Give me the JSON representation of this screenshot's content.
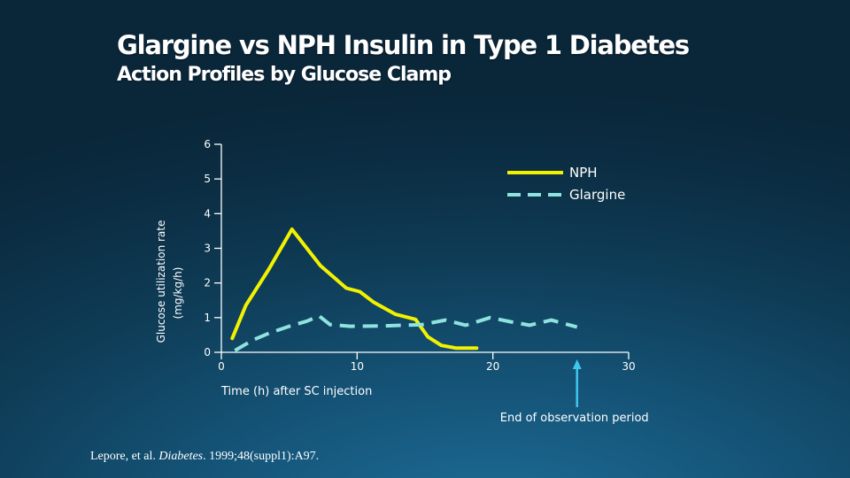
{
  "slide": {
    "title": "Glargine vs NPH Insulin in Type 1 Diabetes",
    "subtitle": "Action Profiles by Glucose Clamp",
    "citation_prefix": "Lepore, et al. ",
    "citation_journal": "Diabetes",
    "citation_suffix": ". 1999;48(suppl1):A97."
  },
  "chart_data": {
    "type": "line",
    "title": "",
    "xlabel": "Time (h) after SC injection",
    "ylabel": "Glucose utilization rate (mg/kg/h)",
    "xlim": [
      0,
      30
    ],
    "ylim": [
      0,
      6
    ],
    "x_ticks": [
      0,
      10,
      20,
      30
    ],
    "y_ticks": [
      0,
      1,
      2,
      3,
      4,
      5,
      6
    ],
    "legend_position": "top-right",
    "series": [
      {
        "name": "NPH",
        "color": "#f2f200",
        "style": "solid",
        "points": [
          [
            0.8,
            0.4
          ],
          [
            1.8,
            1.35
          ],
          [
            3.5,
            2.4
          ],
          [
            5.2,
            3.55
          ],
          [
            7.3,
            2.5
          ],
          [
            9.2,
            1.85
          ],
          [
            10.2,
            1.75
          ],
          [
            11.2,
            1.45
          ],
          [
            12.8,
            1.1
          ],
          [
            14.3,
            0.95
          ],
          [
            15.2,
            0.45
          ],
          [
            16.2,
            0.2
          ],
          [
            17.3,
            0.12
          ],
          [
            18.8,
            0.12
          ]
        ]
      },
      {
        "name": "Glargine",
        "color": "#8fe3df",
        "style": "dashed",
        "points": [
          [
            1.0,
            0.05
          ],
          [
            2.3,
            0.35
          ],
          [
            3.5,
            0.55
          ],
          [
            5.0,
            0.75
          ],
          [
            6.3,
            0.9
          ],
          [
            7.2,
            1.05
          ],
          [
            8.0,
            0.8
          ],
          [
            9.5,
            0.75
          ],
          [
            12.0,
            0.76
          ],
          [
            14.8,
            0.8
          ],
          [
            16.5,
            0.93
          ],
          [
            18.0,
            0.78
          ],
          [
            19.8,
            1.0
          ],
          [
            21.3,
            0.88
          ],
          [
            22.7,
            0.78
          ],
          [
            24.3,
            0.93
          ],
          [
            26.2,
            0.73
          ]
        ]
      }
    ],
    "annotations": [
      {
        "text": "End of observation period",
        "arrow_x": 26.2
      }
    ]
  }
}
